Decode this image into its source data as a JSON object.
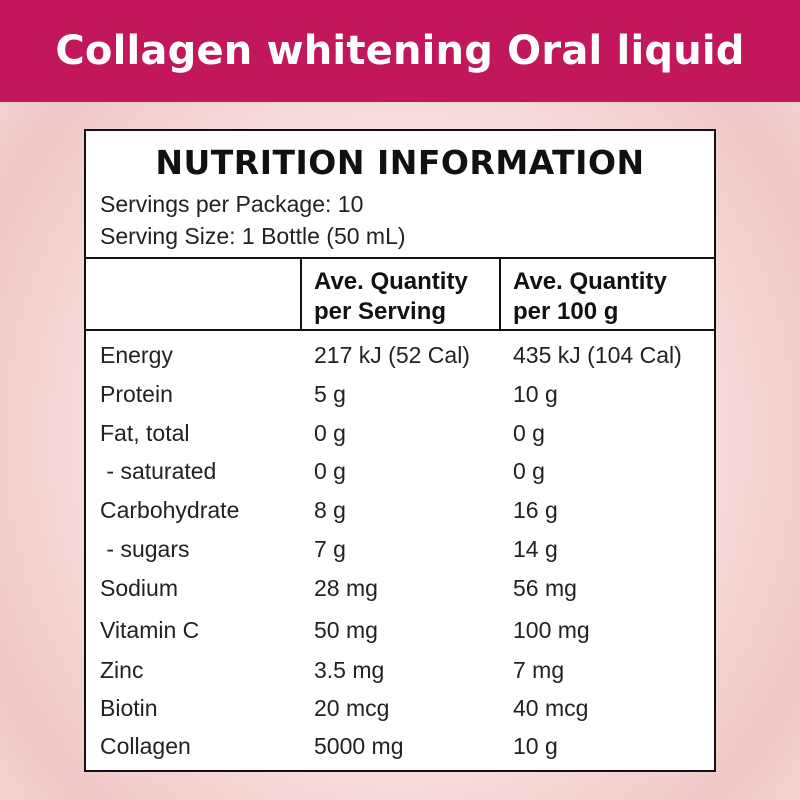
{
  "banner": {
    "title": "Collagen whitening Oral liquid"
  },
  "label": {
    "heading": "NUTRITION INFORMATION",
    "servings_per_package": "Servings per Package: 10",
    "serving_size": "Serving Size: 1 Bottle (50 mL)",
    "columns": [
      {
        "line1": "Ave. Quantity",
        "line2": "per Serving"
      },
      {
        "line1": "Ave. Quantity",
        "line2": "per 100 g"
      }
    ],
    "rows": [
      {
        "name": "Energy",
        "per_serving": "217 kJ (52 Cal)",
        "per_100g": "435 kJ (104 Cal)"
      },
      {
        "name": "Protein",
        "per_serving": "5 g",
        "per_100g": "10 g"
      },
      {
        "name": "Fat, total",
        "per_serving": "0 g",
        "per_100g": "0 g"
      },
      {
        "name": " - saturated",
        "per_serving": "0 g",
        "per_100g": "0 g"
      },
      {
        "name": "Carbohydrate",
        "per_serving": "8 g",
        "per_100g": "16 g"
      },
      {
        "name": " - sugars",
        "per_serving": "7 g",
        "per_100g": "14 g"
      },
      {
        "name": "Sodium",
        "per_serving": "28 mg",
        "per_100g": "56 mg"
      },
      {
        "name": "Vitamin C",
        "per_serving": "50 mg",
        "per_100g": "100 mg"
      },
      {
        "name": "Zinc",
        "per_serving": "3.5 mg",
        "per_100g": "7 mg"
      },
      {
        "name": "Biotin",
        "per_serving": "20 mcg",
        "per_100g": "40 mcg"
      },
      {
        "name": "Collagen",
        "per_serving": "5000 mg",
        "per_100g": "10 g"
      }
    ]
  },
  "colors": {
    "banner": "#c2185b",
    "text": "#222222"
  }
}
